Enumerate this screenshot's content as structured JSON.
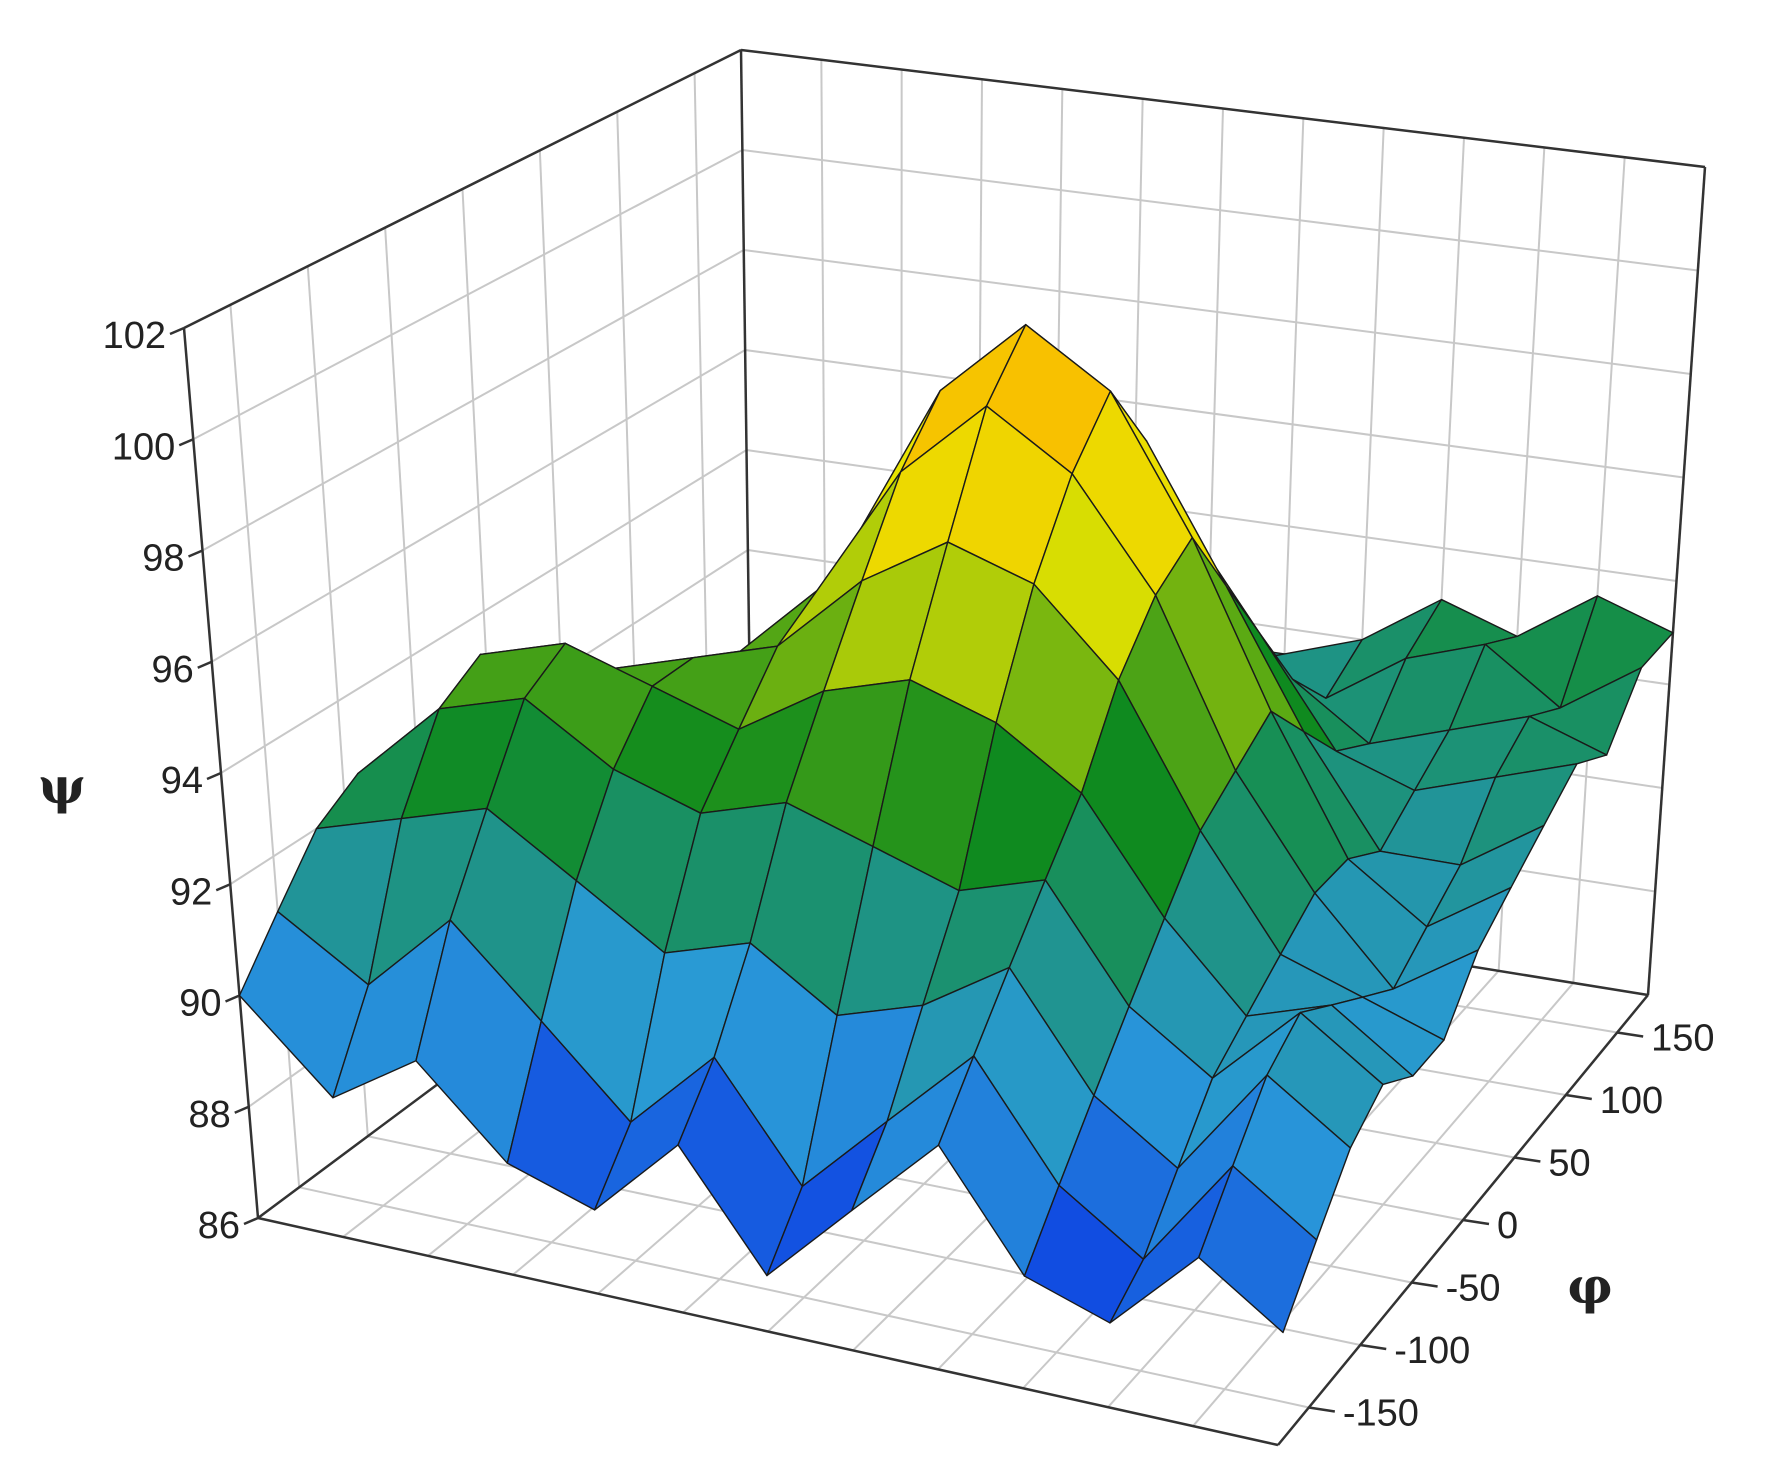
{
  "chart_data": {
    "type": "surface",
    "zlabel": "ψ",
    "ylabel": "φ",
    "x": [
      null,
      null,
      null,
      null,
      null,
      null,
      null,
      null,
      null,
      null,
      null,
      null,
      null
    ],
    "y": [
      -180,
      -150,
      -120,
      -90,
      -60,
      -30,
      0,
      30,
      60,
      90,
      120,
      150,
      180
    ],
    "z": [
      [
        90,
        88.5,
        89.5,
        88,
        87.5,
        89,
        87,
        88.5,
        90,
        88,
        87.5,
        89,
        88
      ],
      [
        91,
        90,
        91.5,
        90,
        88.5,
        90,
        88,
        89.5,
        91,
        89,
        88,
        90,
        89
      ],
      [
        92,
        92.5,
        93,
        92,
        91,
        91.5,
        90.5,
        91,
        92,
        90,
        89,
        91,
        90
      ],
      [
        92.5,
        94,
        94.5,
        93.5,
        93,
        93.5,
        93,
        92.5,
        93,
        91,
        90,
        91.5,
        90.5
      ],
      [
        92,
        94.5,
        95,
        94.5,
        94,
        95,
        95.5,
        95,
        94,
        92,
        90.5,
        91,
        90
      ],
      [
        91,
        93.5,
        94,
        94.5,
        95,
        96.5,
        97.5,
        97,
        95.5,
        93,
        91,
        90.5,
        90
      ],
      [
        90,
        92,
        93,
        94,
        95.5,
        98,
        99.5,
        98.5,
        96.5,
        93.5,
        91.5,
        90,
        91
      ],
      [
        89.5,
        91,
        92,
        93.5,
        96,
        99,
        100.5,
        99.5,
        97,
        94,
        91.5,
        90.5,
        91.5
      ],
      [
        89,
        90,
        91,
        93,
        95.5,
        98,
        99,
        98,
        95.5,
        93,
        91,
        91,
        92
      ],
      [
        88.5,
        89.5,
        90,
        92,
        94,
        96,
        97,
        96,
        94,
        92,
        91.5,
        92,
        92.5
      ],
      [
        88,
        89,
        89.5,
        91,
        92.5,
        94,
        94.5,
        94,
        92.5,
        91.5,
        92,
        92.5,
        92
      ],
      [
        88,
        88.5,
        89,
        90,
        91,
        92,
        92.5,
        92,
        91.5,
        92.5,
        93,
        92,
        93
      ],
      [
        88.5,
        89,
        89,
        89.5,
        90.5,
        91,
        91.5,
        91.5,
        92,
        93,
        92.5,
        93.5,
        93
      ]
    ],
    "zlim": [
      86,
      102
    ],
    "zticks": [
      86,
      88,
      90,
      92,
      94,
      96,
      98,
      100,
      102
    ],
    "ylim": [
      -180,
      180
    ],
    "yticks": [
      -150,
      -100,
      -50,
      0,
      50,
      100,
      150
    ],
    "colormap": [
      "#0018e8",
      "#2a9ad8",
      "#0f8a1e",
      "#e8e400",
      "#ffb000"
    ],
    "grid": true
  }
}
